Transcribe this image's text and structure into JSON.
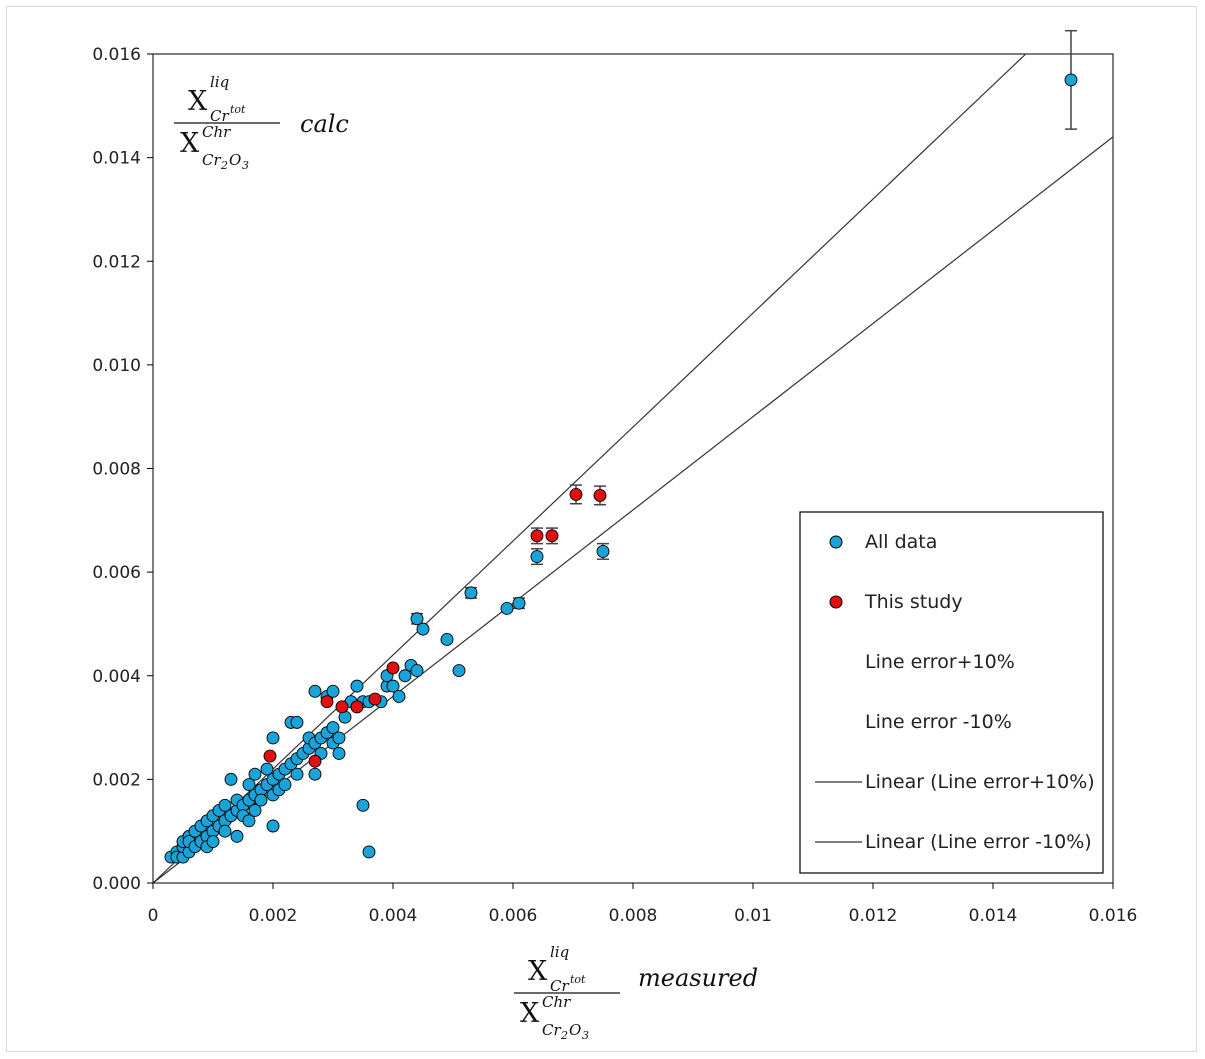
{
  "chart_data": {
    "type": "scatter",
    "title": "",
    "xlim": [
      0,
      0.016
    ],
    "ylim": [
      0,
      0.016
    ],
    "x_ticks": [
      "0",
      "0.002",
      "0.004",
      "0.006",
      "0.008",
      "0.01",
      "0.012",
      "0.014",
      "0.016"
    ],
    "y_ticks": [
      "0.000",
      "0.002",
      "0.004",
      "0.006",
      "0.008",
      "0.010",
      "0.012",
      "0.014",
      "0.016"
    ],
    "grid": false,
    "legend_placement": "bottom-right",
    "xlabel": {
      "numerator": {
        "base": "X",
        "sup": "liq",
        "sub": "Cr",
        "subsup": "tot"
      },
      "denominator": {
        "base": "X",
        "sup": "Chr",
        "sub": "Cr",
        "sub2": "2",
        "sub3": "O",
        "sub4": "3"
      },
      "suffix": "measured"
    },
    "ylabel": {
      "numerator": {
        "base": "X",
        "sup": "liq",
        "sub": "Cr",
        "subsup": "tot"
      },
      "denominator": {
        "base": "X",
        "sup": "Chr",
        "sub": "Cr",
        "sub2": "2",
        "sub3": "O",
        "sub4": "3"
      },
      "suffix": "calc"
    },
    "series": [
      {
        "name": "All data",
        "color": "#1aa3d9",
        "points": [
          [
            0.0003,
            0.0005
          ],
          [
            0.0004,
            0.0006
          ],
          [
            0.0004,
            0.0005
          ],
          [
            0.0005,
            0.0005
          ],
          [
            0.0005,
            0.0007
          ],
          [
            0.0005,
            0.0008
          ],
          [
            0.0006,
            0.0006
          ],
          [
            0.0006,
            0.0009
          ],
          [
            0.0006,
            0.0008
          ],
          [
            0.0007,
            0.0007
          ],
          [
            0.0007,
            0.001
          ],
          [
            0.0008,
            0.0008
          ],
          [
            0.0008,
            0.0011
          ],
          [
            0.0009,
            0.0009
          ],
          [
            0.0009,
            0.0012
          ],
          [
            0.0009,
            0.0007
          ],
          [
            0.001,
            0.001
          ],
          [
            0.001,
            0.0013
          ],
          [
            0.001,
            0.0008
          ],
          [
            0.0011,
            0.0011
          ],
          [
            0.0011,
            0.0014
          ],
          [
            0.0012,
            0.0012
          ],
          [
            0.0012,
            0.0015
          ],
          [
            0.0012,
            0.001
          ],
          [
            0.0013,
            0.0013
          ],
          [
            0.0013,
            0.002
          ],
          [
            0.0014,
            0.0014
          ],
          [
            0.0014,
            0.0016
          ],
          [
            0.0014,
            0.0009
          ],
          [
            0.0015,
            0.0015
          ],
          [
            0.0015,
            0.0013
          ],
          [
            0.0016,
            0.0016
          ],
          [
            0.0016,
            0.0019
          ],
          [
            0.0016,
            0.0012
          ],
          [
            0.0017,
            0.0017
          ],
          [
            0.0017,
            0.0021
          ],
          [
            0.0017,
            0.0014
          ],
          [
            0.0018,
            0.0018
          ],
          [
            0.0018,
            0.0016
          ],
          [
            0.0019,
            0.0019
          ],
          [
            0.0019,
            0.0022
          ],
          [
            0.002,
            0.002
          ],
          [
            0.002,
            0.0017
          ],
          [
            0.002,
            0.0028
          ],
          [
            0.002,
            0.0011
          ],
          [
            0.0021,
            0.0021
          ],
          [
            0.0021,
            0.0018
          ],
          [
            0.0022,
            0.0022
          ],
          [
            0.0022,
            0.0019
          ],
          [
            0.0023,
            0.0023
          ],
          [
            0.0023,
            0.0031
          ],
          [
            0.0024,
            0.0024
          ],
          [
            0.0024,
            0.0021
          ],
          [
            0.0024,
            0.0031
          ],
          [
            0.0025,
            0.0025
          ],
          [
            0.0026,
            0.0026
          ],
          [
            0.0026,
            0.0028
          ],
          [
            0.0027,
            0.0027
          ],
          [
            0.0027,
            0.0021
          ],
          [
            0.0027,
            0.0037
          ],
          [
            0.0028,
            0.0028
          ],
          [
            0.0028,
            0.0025
          ],
          [
            0.0029,
            0.0029
          ],
          [
            0.0029,
            0.0036
          ],
          [
            0.003,
            0.003
          ],
          [
            0.003,
            0.0027
          ],
          [
            0.003,
            0.0037
          ],
          [
            0.0031,
            0.0028
          ],
          [
            0.0031,
            0.0025
          ],
          [
            0.0032,
            0.0032
          ],
          [
            0.0033,
            0.0035
          ],
          [
            0.0034,
            0.0034
          ],
          [
            0.0034,
            0.0038
          ],
          [
            0.0035,
            0.0035
          ],
          [
            0.0036,
            0.0035
          ],
          [
            0.0038,
            0.0035
          ],
          [
            0.0039,
            0.0038
          ],
          [
            0.0039,
            0.004
          ],
          [
            0.004,
            0.0038
          ],
          [
            0.0041,
            0.0036
          ],
          [
            0.0042,
            0.004
          ],
          [
            0.0043,
            0.0042
          ],
          [
            0.0044,
            0.0041
          ],
          [
            0.0044,
            0.0051
          ],
          [
            0.0045,
            0.0049
          ],
          [
            0.0049,
            0.0047
          ],
          [
            0.0051,
            0.0041
          ],
          [
            0.0053,
            0.0056
          ],
          [
            0.0059,
            0.0053
          ],
          [
            0.0061,
            0.0054
          ],
          [
            0.0064,
            0.0063
          ],
          [
            0.0075,
            0.0064
          ],
          [
            0.0035,
            0.0015
          ],
          [
            0.0036,
            0.0006
          ],
          [
            0.0153,
            0.0155
          ]
        ]
      },
      {
        "name": "This study",
        "color": "#e01010",
        "points": [
          [
            0.00195,
            0.00245
          ],
          [
            0.0027,
            0.00235
          ],
          [
            0.0029,
            0.0035
          ],
          [
            0.00315,
            0.0034
          ],
          [
            0.0034,
            0.0034
          ],
          [
            0.0037,
            0.00355
          ],
          [
            0.004,
            0.00415
          ],
          [
            0.0064,
            0.0067
          ],
          [
            0.00665,
            0.0067
          ],
          [
            0.00705,
            0.0075
          ],
          [
            0.00745,
            0.00748
          ]
        ]
      },
      {
        "name": "Line error+10%",
        "color": "#ffffff",
        "points": []
      },
      {
        "name": "Line error -10%",
        "color": "#ffffff",
        "points": []
      },
      {
        "name": "Linear (Line error+10%)",
        "color": "#333333",
        "slope": 1.1
      },
      {
        "name": "Linear (Line error -10%)",
        "color": "#333333",
        "slope": 0.9
      }
    ],
    "error_bars": [
      {
        "x": 0.0153,
        "y": 0.0155,
        "err": 0.00095
      },
      {
        "x": 0.0064,
        "y": 0.0063,
        "err": 0.00015
      },
      {
        "x": 0.0075,
        "y": 0.0064,
        "err": 0.00015
      },
      {
        "x": 0.0064,
        "y": 0.0067,
        "err": 0.00015
      },
      {
        "x": 0.00665,
        "y": 0.0067,
        "err": 0.00015
      },
      {
        "x": 0.00705,
        "y": 0.0075,
        "err": 0.00018
      },
      {
        "x": 0.00745,
        "y": 0.00748,
        "err": 0.00018
      },
      {
        "x": 0.0061,
        "y": 0.0054,
        "err": 0.0001
      },
      {
        "x": 0.0053,
        "y": 0.0056,
        "err": 0.0001
      },
      {
        "x": 0.0044,
        "y": 0.0051,
        "err": 0.0001
      }
    ]
  }
}
